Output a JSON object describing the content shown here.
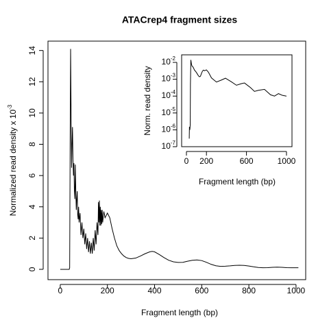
{
  "chart_data": [
    {
      "type": "line",
      "title": "ATACrep4 fragment sizes",
      "xlabel": "Fragment length (bp)",
      "ylabel": "Normalized read density x 10",
      "ylabel_exponent": "-3",
      "color": "#000000",
      "x": [
        0,
        38,
        40,
        42,
        44,
        46,
        48,
        50,
        52,
        54,
        56,
        58,
        60,
        62,
        64,
        66,
        68,
        70,
        72,
        74,
        76,
        78,
        80,
        84,
        88,
        92,
        96,
        100,
        104,
        108,
        112,
        116,
        120,
        124,
        128,
        132,
        136,
        140,
        144,
        148,
        152,
        156,
        160,
        162,
        164,
        166,
        168,
        170,
        172,
        174,
        176,
        178,
        180,
        185,
        190,
        200,
        210,
        220,
        230,
        240,
        250,
        260,
        270,
        280,
        290,
        300,
        320,
        340,
        360,
        380,
        390,
        400,
        420,
        440,
        460,
        480,
        500,
        520,
        540,
        560,
        580,
        600,
        620,
        640,
        660,
        680,
        700,
        720,
        740,
        760,
        780,
        800,
        820,
        840,
        860,
        880,
        900,
        920,
        940,
        960,
        980,
        1000,
        1010
      ],
      "values": [
        0,
        0,
        0.1,
        8,
        14.1,
        10,
        6.5,
        8,
        9.1,
        7,
        6,
        6.8,
        5,
        4.5,
        6.7,
        5,
        3.8,
        4.5,
        5,
        3.5,
        3.2,
        4,
        3,
        3.6,
        2.2,
        3,
        2,
        2.6,
        1.6,
        2.3,
        1.3,
        2.0,
        1.1,
        1.8,
        1.0,
        1.7,
        1.0,
        2.0,
        1.2,
        2.5,
        1.6,
        3.0,
        2.2,
        4.3,
        3.0,
        4.4,
        2.8,
        4.0,
        2.8,
        3.8,
        2.9,
        3.8,
        3.0,
        3.7,
        3.3,
        3.6,
        3.3,
        2.6,
        2.0,
        1.5,
        1.2,
        1.0,
        0.85,
        0.75,
        0.7,
        0.68,
        0.72,
        0.85,
        1.0,
        1.12,
        1.15,
        1.12,
        0.95,
        0.75,
        0.58,
        0.48,
        0.44,
        0.45,
        0.52,
        0.58,
        0.6,
        0.56,
        0.45,
        0.32,
        0.23,
        0.19,
        0.2,
        0.22,
        0.25,
        0.26,
        0.25,
        0.21,
        0.16,
        0.12,
        0.1,
        0.11,
        0.13,
        0.14,
        0.13,
        0.11,
        0.1,
        0.1,
        0.1
      ],
      "xlim": [
        -52,
        1041
      ],
      "xticks": [
        0,
        200,
        400,
        600,
        800,
        1000
      ],
      "ylim": [
        -0.66,
        14.6
      ],
      "yticks": [
        0,
        2,
        4,
        6,
        8,
        10,
        12,
        14
      ]
    },
    {
      "type": "line",
      "xlabel": "Fragment length (bp)",
      "ylabel": "Norm. read density",
      "color": "#000000",
      "ylog": true,
      "x": [
        28,
        30,
        34,
        38,
        40,
        44,
        50,
        56,
        64,
        72,
        80,
        90,
        100,
        110,
        120,
        130,
        140,
        150,
        160,
        170,
        180,
        200,
        220,
        250,
        300,
        350,
        390,
        450,
        500,
        550,
        580,
        640,
        680,
        720,
        780,
        840,
        880,
        920,
        960,
        1000
      ],
      "values": [
        3e-07,
        1.5e-06,
        1e-06,
        2e-06,
        0.0005,
        0.014,
        0.008,
        0.006,
        0.0055,
        0.0045,
        0.0035,
        0.003,
        0.0025,
        0.002,
        0.0016,
        0.0014,
        0.0015,
        0.0022,
        0.003,
        0.0035,
        0.0032,
        0.0036,
        0.0026,
        0.0012,
        0.00068,
        0.0009,
        0.00115,
        0.0007,
        0.00044,
        0.00055,
        0.0006,
        0.00032,
        0.00019,
        0.00022,
        0.00025,
        0.00012,
        0.0001,
        0.00014,
        0.00011,
        0.0001
      ],
      "xlim": [
        -48,
        1055
      ],
      "xticks": [
        0,
        200,
        600,
        1000
      ],
      "ylim": [
        1e-07,
        0.028
      ],
      "yticks": [
        {
          "value": 1e-07,
          "label": "10",
          "exponent": "-7"
        },
        {
          "value": 1e-06,
          "label": "10",
          "exponent": "-6"
        },
        {
          "value": 1e-05,
          "label": "10",
          "exponent": "-5"
        },
        {
          "value": 0.0001,
          "label": "10",
          "exponent": "-4"
        },
        {
          "value": 0.001,
          "label": "10",
          "exponent": "-3"
        },
        {
          "value": 0.01,
          "label": "10",
          "exponent": "-2"
        }
      ]
    }
  ]
}
